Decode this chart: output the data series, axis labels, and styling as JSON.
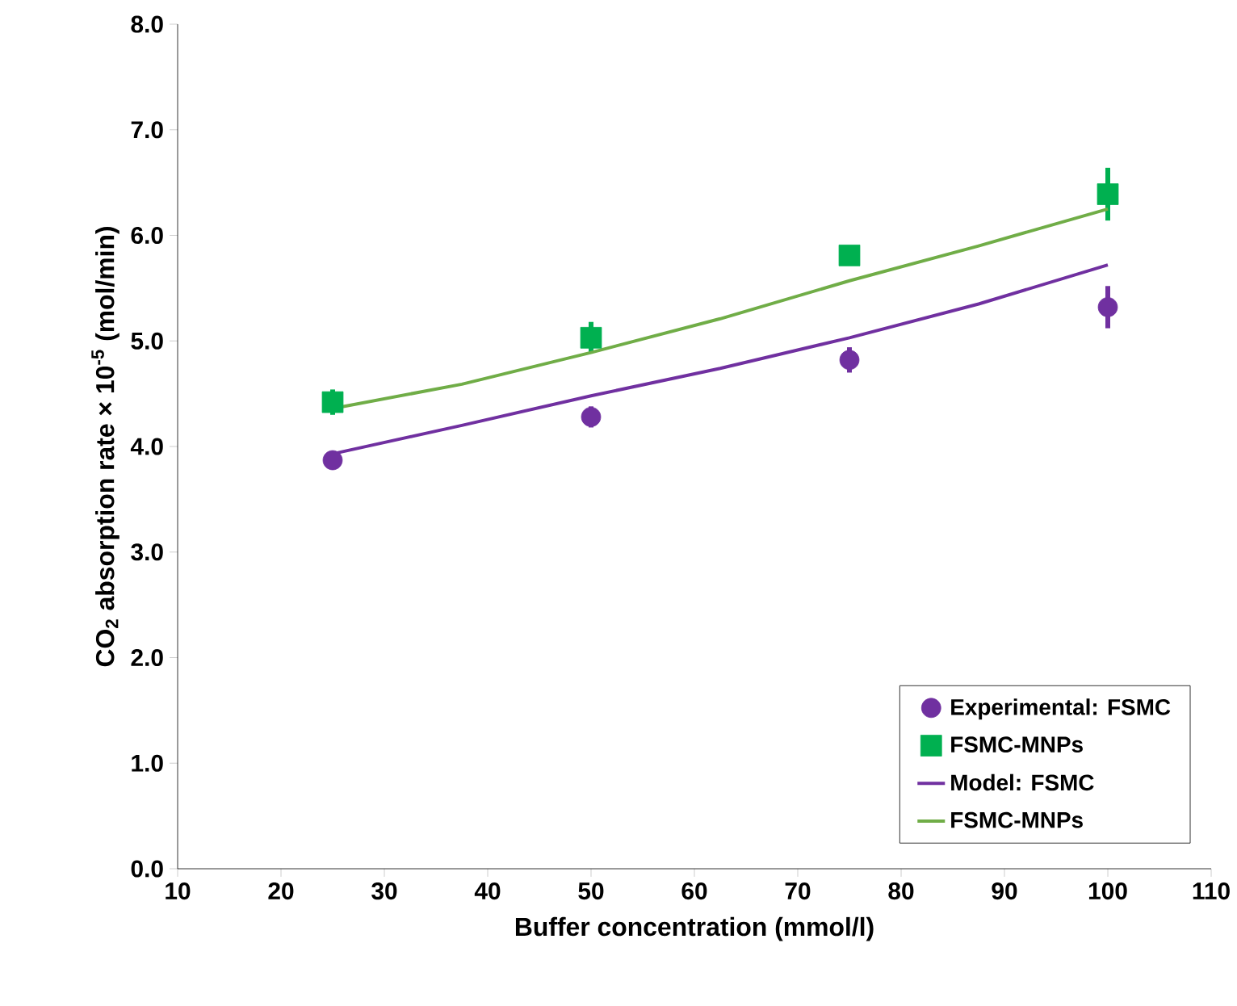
{
  "chart_data": {
    "type": "scatter",
    "xlabel": "Buffer concentration (mmol/l)",
    "ylabel": "CO$_{2}$ absorption rate × 10$^{-5}$ (mol/min)",
    "xlim": [
      10,
      110
    ],
    "xticks": [
      10,
      20,
      30,
      40,
      50,
      60,
      70,
      80,
      90,
      100,
      110
    ],
    "ylim": [
      0,
      8
    ],
    "yticks": [
      {
        "value": 0,
        "label": "0.0"
      },
      {
        "value": 1,
        "label": "1.0"
      },
      {
        "value": 2,
        "label": "2.0"
      },
      {
        "value": 3,
        "label": "3.0"
      },
      {
        "value": 4,
        "label": "4.0"
      },
      {
        "value": 5,
        "label": "5.0"
      },
      {
        "value": 6,
        "label": "6.0"
      },
      {
        "value": 7,
        "label": "7.0"
      },
      {
        "value": 8,
        "label": "8.0"
      }
    ],
    "grid": false,
    "legend": "bottom right",
    "series": [
      {
        "name": "Experimental: FSMC",
        "marker": "circle",
        "color": "#7030a0",
        "x": [
          25,
          50,
          75,
          100
        ],
        "values": [
          3.87,
          4.28,
          4.82,
          5.32
        ],
        "errors": [
          0.05,
          0.1,
          0.12,
          0.2
        ]
      },
      {
        "name": "FSMC-MNPs",
        "marker": "square",
        "color": "#00b050",
        "x": [
          25,
          50,
          75,
          100
        ],
        "values": [
          4.42,
          5.03,
          5.81,
          6.39
        ],
        "errors": [
          0.12,
          0.15,
          null,
          0.25
        ]
      },
      {
        "name": "Model: FSMC",
        "type": "line",
        "marker": "none",
        "color": "#7030a0",
        "x": [
          25,
          37.5,
          50,
          62.5,
          75,
          87.5,
          100
        ],
        "values": [
          3.93,
          4.2,
          4.48,
          4.74,
          5.03,
          5.35,
          5.72
        ]
      },
      {
        "name": "FSMC-MNPs",
        "type": "line",
        "marker": "none",
        "color": "#70ad47",
        "x": [
          25,
          37.5,
          50,
          62.5,
          75,
          87.5,
          100
        ],
        "values": [
          4.36,
          4.59,
          4.89,
          5.21,
          5.57,
          5.9,
          6.25
        ]
      }
    ]
  }
}
